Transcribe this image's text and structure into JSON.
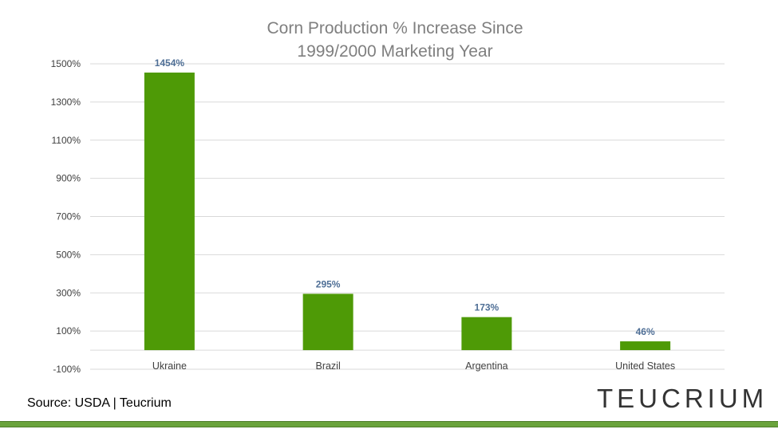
{
  "chart_data": {
    "type": "bar",
    "title_lines": [
      "Corn Production % Increase Since",
      "1999/2000 Marketing Year"
    ],
    "categories": [
      "Ukraine",
      "Brazil",
      "Argentina",
      "United States"
    ],
    "values": [
      1454,
      295,
      173,
      46
    ],
    "data_labels": [
      "1454%",
      "295%",
      "173%",
      "46%"
    ],
    "y_ticks": [
      "1500%",
      "1300%",
      "1100%",
      "900%",
      "700%",
      "500%",
      "300%",
      "100%",
      "-100%"
    ],
    "y_tick_values": [
      1500,
      1300,
      1100,
      900,
      700,
      500,
      300,
      100,
      -100
    ],
    "ylim": [
      -100,
      1500
    ],
    "baseline": 0,
    "grid": true,
    "bar_color": "#4e9a06",
    "label_color": "#4f6f96"
  },
  "footer": {
    "source": "Source: USDA | Teucrium",
    "logo_text": "TEUCRIUM"
  }
}
